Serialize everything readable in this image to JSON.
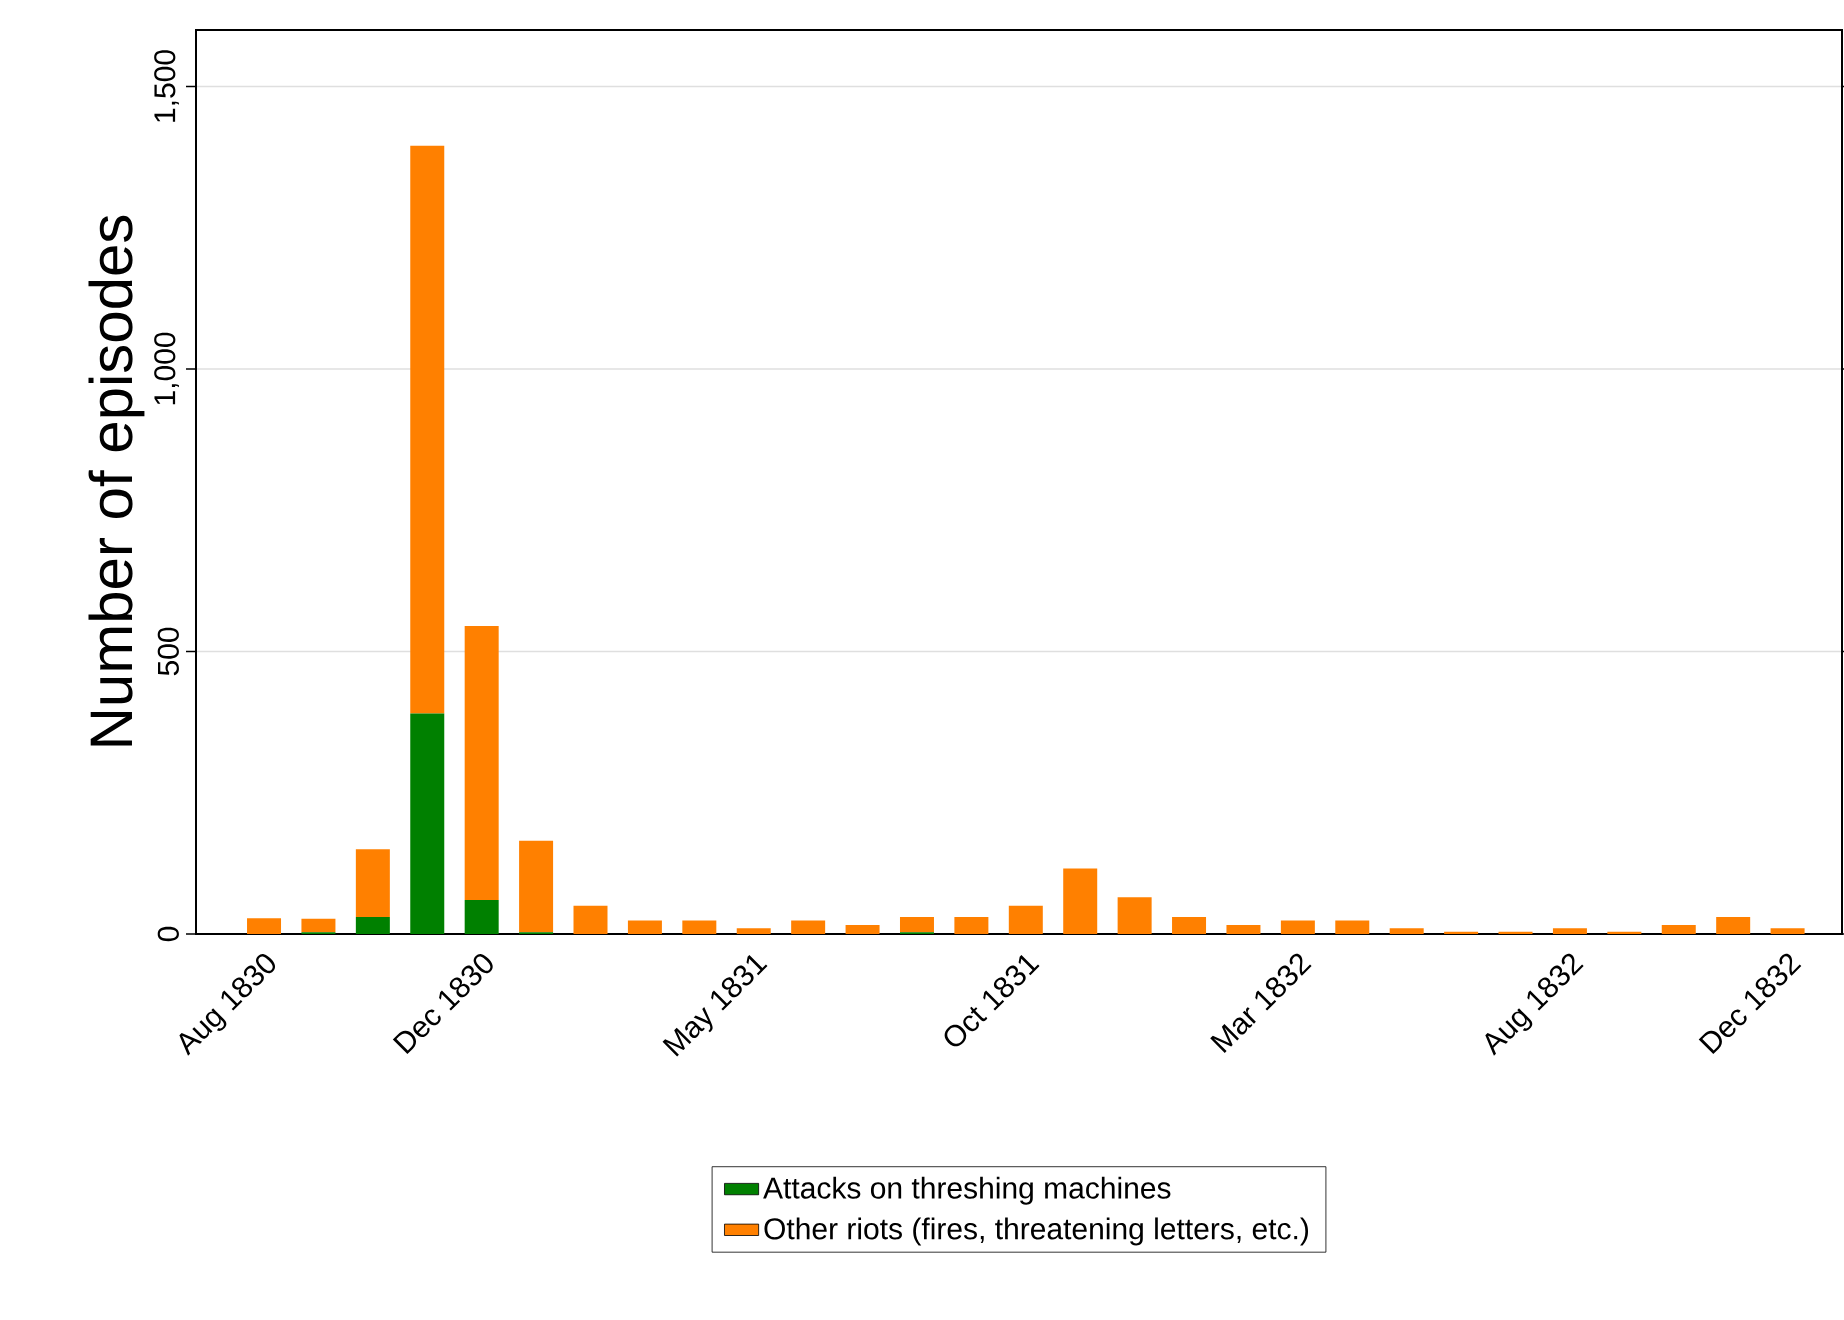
{
  "chart_data": {
    "type": "bar",
    "stacked": true,
    "ylabel": "Number of episodes",
    "categories": [
      "Aug 1830",
      null,
      null,
      null,
      "Dec 1830",
      null,
      null,
      null,
      null,
      "May 1831",
      null,
      null,
      null,
      null,
      "Oct 1831",
      null,
      null,
      null,
      null,
      "Mar 1832",
      null,
      null,
      null,
      null,
      "Aug 1832",
      null,
      null,
      null,
      "Dec 1832"
    ],
    "series": [
      {
        "name": "Attacks on threshing machines",
        "color": "#008000",
        "values": [
          0,
          3,
          30,
          390,
          60,
          3,
          0,
          0,
          0,
          0,
          0,
          0,
          3,
          0,
          0,
          0,
          0,
          0,
          0,
          0,
          0,
          0,
          0,
          0,
          0,
          0,
          0,
          0,
          0
        ]
      },
      {
        "name": "Other riots (fires, threatening letters, etc.)",
        "color": "#ff8000",
        "values": [
          28,
          24,
          120,
          1005,
          485,
          162,
          50,
          24,
          24,
          10,
          24,
          16,
          27,
          30,
          50,
          116,
          65,
          30,
          16,
          24,
          24,
          10,
          4,
          4,
          10,
          4,
          16,
          30,
          10
        ]
      }
    ],
    "ylim": [
      0,
      1600
    ],
    "yticks": [
      0,
      500,
      {
        "value": 1000,
        "label": "1,000"
      },
      {
        "value": 1500,
        "label": "1,500"
      }
    ],
    "grid": "y",
    "legend": "bottom"
  }
}
